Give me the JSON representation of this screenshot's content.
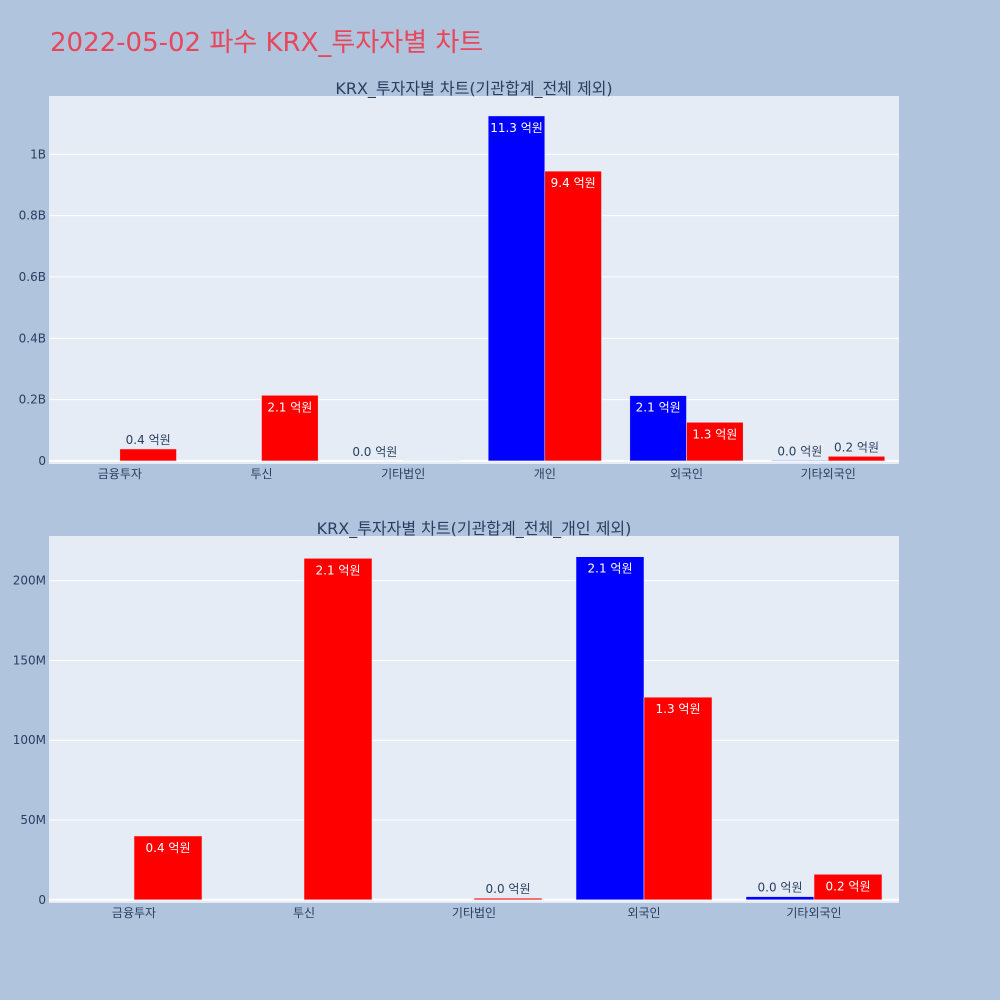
{
  "page": {
    "title": "2022-05-02 파수 KRX_투자자별 차트"
  },
  "colors": {
    "background": "#b0c4de",
    "plot_background": "#e5ecf6",
    "grid": "#ffffff",
    "title": "#e8465a",
    "text": "#2a3f5f",
    "series_buy": "#0000ff",
    "series_sell": "#ff0000"
  },
  "chart_data": [
    {
      "type": "bar",
      "title": "KRX_투자자별 차트(기관합계_전체 제외)",
      "categories": [
        "금융투자",
        "투신",
        "기타법인",
        "개인",
        "외국인",
        "기타외국인"
      ],
      "yticks": [
        {
          "value": 0,
          "label": "0"
        },
        {
          "value": 200000000,
          "label": "0.2B"
        },
        {
          "value": 400000000,
          "label": "0.4B"
        },
        {
          "value": 600000000,
          "label": "0.6B"
        },
        {
          "value": 800000000,
          "label": "0.8B"
        },
        {
          "value": 1000000000,
          "label": "1B"
        }
      ],
      "ylim": [
        -10000000,
        1190000000
      ],
      "series": [
        {
          "color": "#0000ff",
          "values": [
            0,
            0,
            0,
            1125000000,
            213000000,
            2000000
          ],
          "labels": [
            "",
            "",
            "0.0 억원",
            "11.3 억원",
            "2.1 억원",
            "0.0 억원"
          ]
        },
        {
          "color": "#ff0000",
          "values": [
            39000000,
            214000000,
            1000000,
            945000000,
            126000000,
            15000000
          ],
          "labels": [
            "0.4 억원",
            "2.1 억원",
            "",
            "9.4 억원",
            "1.3 억원",
            "0.2 억원"
          ]
        }
      ]
    },
    {
      "type": "bar",
      "title": "KRX_투자자별 차트(기관합계_전체_개인 제외)",
      "categories": [
        "금융투자",
        "투신",
        "기타법인",
        "외국인",
        "기타외국인"
      ],
      "yticks": [
        {
          "value": 0,
          "label": "0"
        },
        {
          "value": 50000000,
          "label": "50M"
        },
        {
          "value": 100000000,
          "label": "100M"
        },
        {
          "value": 150000000,
          "label": "150M"
        },
        {
          "value": 200000000,
          "label": "200M"
        }
      ],
      "ylim": [
        -2000000,
        228000000
      ],
      "series": [
        {
          "color": "#0000ff",
          "values": [
            0,
            0,
            0,
            215000000,
            2000000
          ],
          "labels": [
            "",
            "",
            "",
            "2.1 억원",
            "0.0 억원"
          ]
        },
        {
          "color": "#ff0000",
          "values": [
            40000000,
            214000000,
            1000000,
            127000000,
            16000000
          ],
          "labels": [
            "0.4 억원",
            "2.1 억원",
            "0.0 억원",
            "1.3 억원",
            "0.2 억원"
          ]
        }
      ]
    }
  ]
}
